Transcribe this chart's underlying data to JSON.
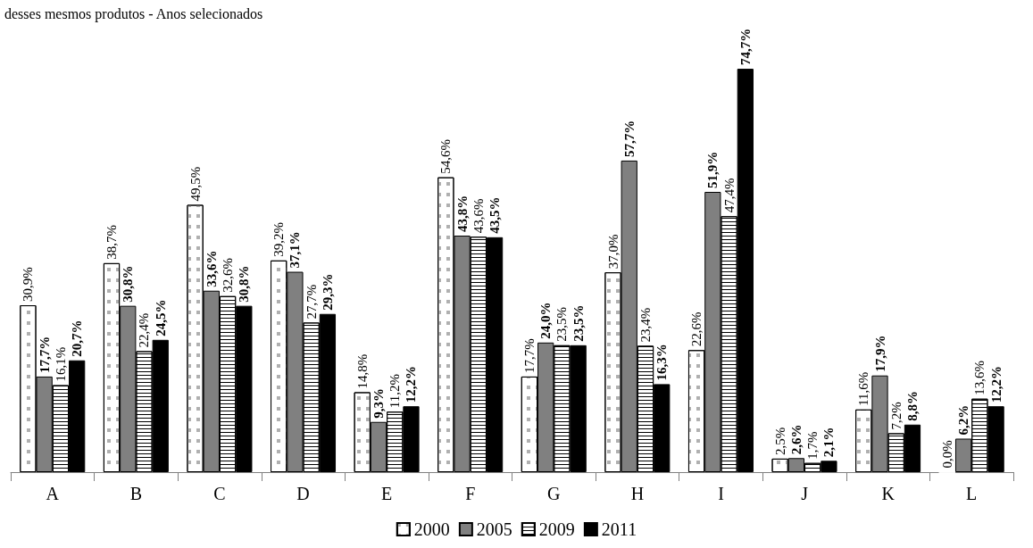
{
  "chart_data": {
    "type": "bar",
    "title": "desses mesmos produtos - Anos selecionados",
    "categories": [
      "A",
      "B",
      "C",
      "D",
      "E",
      "F",
      "G",
      "H",
      "I",
      "J",
      "K",
      "L"
    ],
    "series": [
      {
        "name": "2000",
        "color": "#ffffff",
        "values": [
          30.9,
          38.7,
          49.5,
          39.2,
          14.8,
          54.6,
          17.7,
          37.0,
          22.6,
          2.5,
          11.6,
          0.0
        ],
        "value_labels": [
          "30,9%",
          "38,7%",
          "49,5%",
          "39,2%",
          "14,8%",
          "54,6%",
          "17,7%",
          "37,0%",
          "22,6%",
          "2,5%",
          "11,6%",
          "0,0%"
        ]
      },
      {
        "name": "2005",
        "color": "#808080",
        "values": [
          17.7,
          30.8,
          33.6,
          37.1,
          9.3,
          43.8,
          24.0,
          57.7,
          51.9,
          2.6,
          17.9,
          6.2
        ],
        "value_labels": [
          "17,7%",
          "30,8%",
          "33,6%",
          "37,1%",
          "9,3%",
          "43,8%",
          "24,0%",
          "57,7%",
          "51,9%",
          "2,6%",
          "17,9%",
          "6,2%"
        ]
      },
      {
        "name": "2009",
        "color": "#ffffff",
        "values": [
          16.1,
          22.4,
          32.6,
          27.7,
          11.2,
          43.6,
          23.5,
          23.4,
          47.4,
          1.7,
          7.2,
          13.6
        ],
        "value_labels": [
          "16,1%",
          "22,4%",
          "32,6%",
          "27,7%",
          "11,2%",
          "43,6%",
          "23,5%",
          "23,4%",
          "47,4%",
          "1,7%",
          "7,2%",
          "13,6%"
        ]
      },
      {
        "name": "2011",
        "color": "#000000",
        "values": [
          20.7,
          24.5,
          30.8,
          29.3,
          12.2,
          43.5,
          23.5,
          16.3,
          74.7,
          2.1,
          8.8,
          12.2
        ],
        "value_labels": [
          "20,7%",
          "24,5%",
          "30,8%",
          "29,3%",
          "12,2%",
          "43,5%",
          "23,5%",
          "16,3%",
          "74,7%",
          "2,1%",
          "8,8%",
          "12,2%"
        ]
      }
    ],
    "legend": "bottom"
  }
}
